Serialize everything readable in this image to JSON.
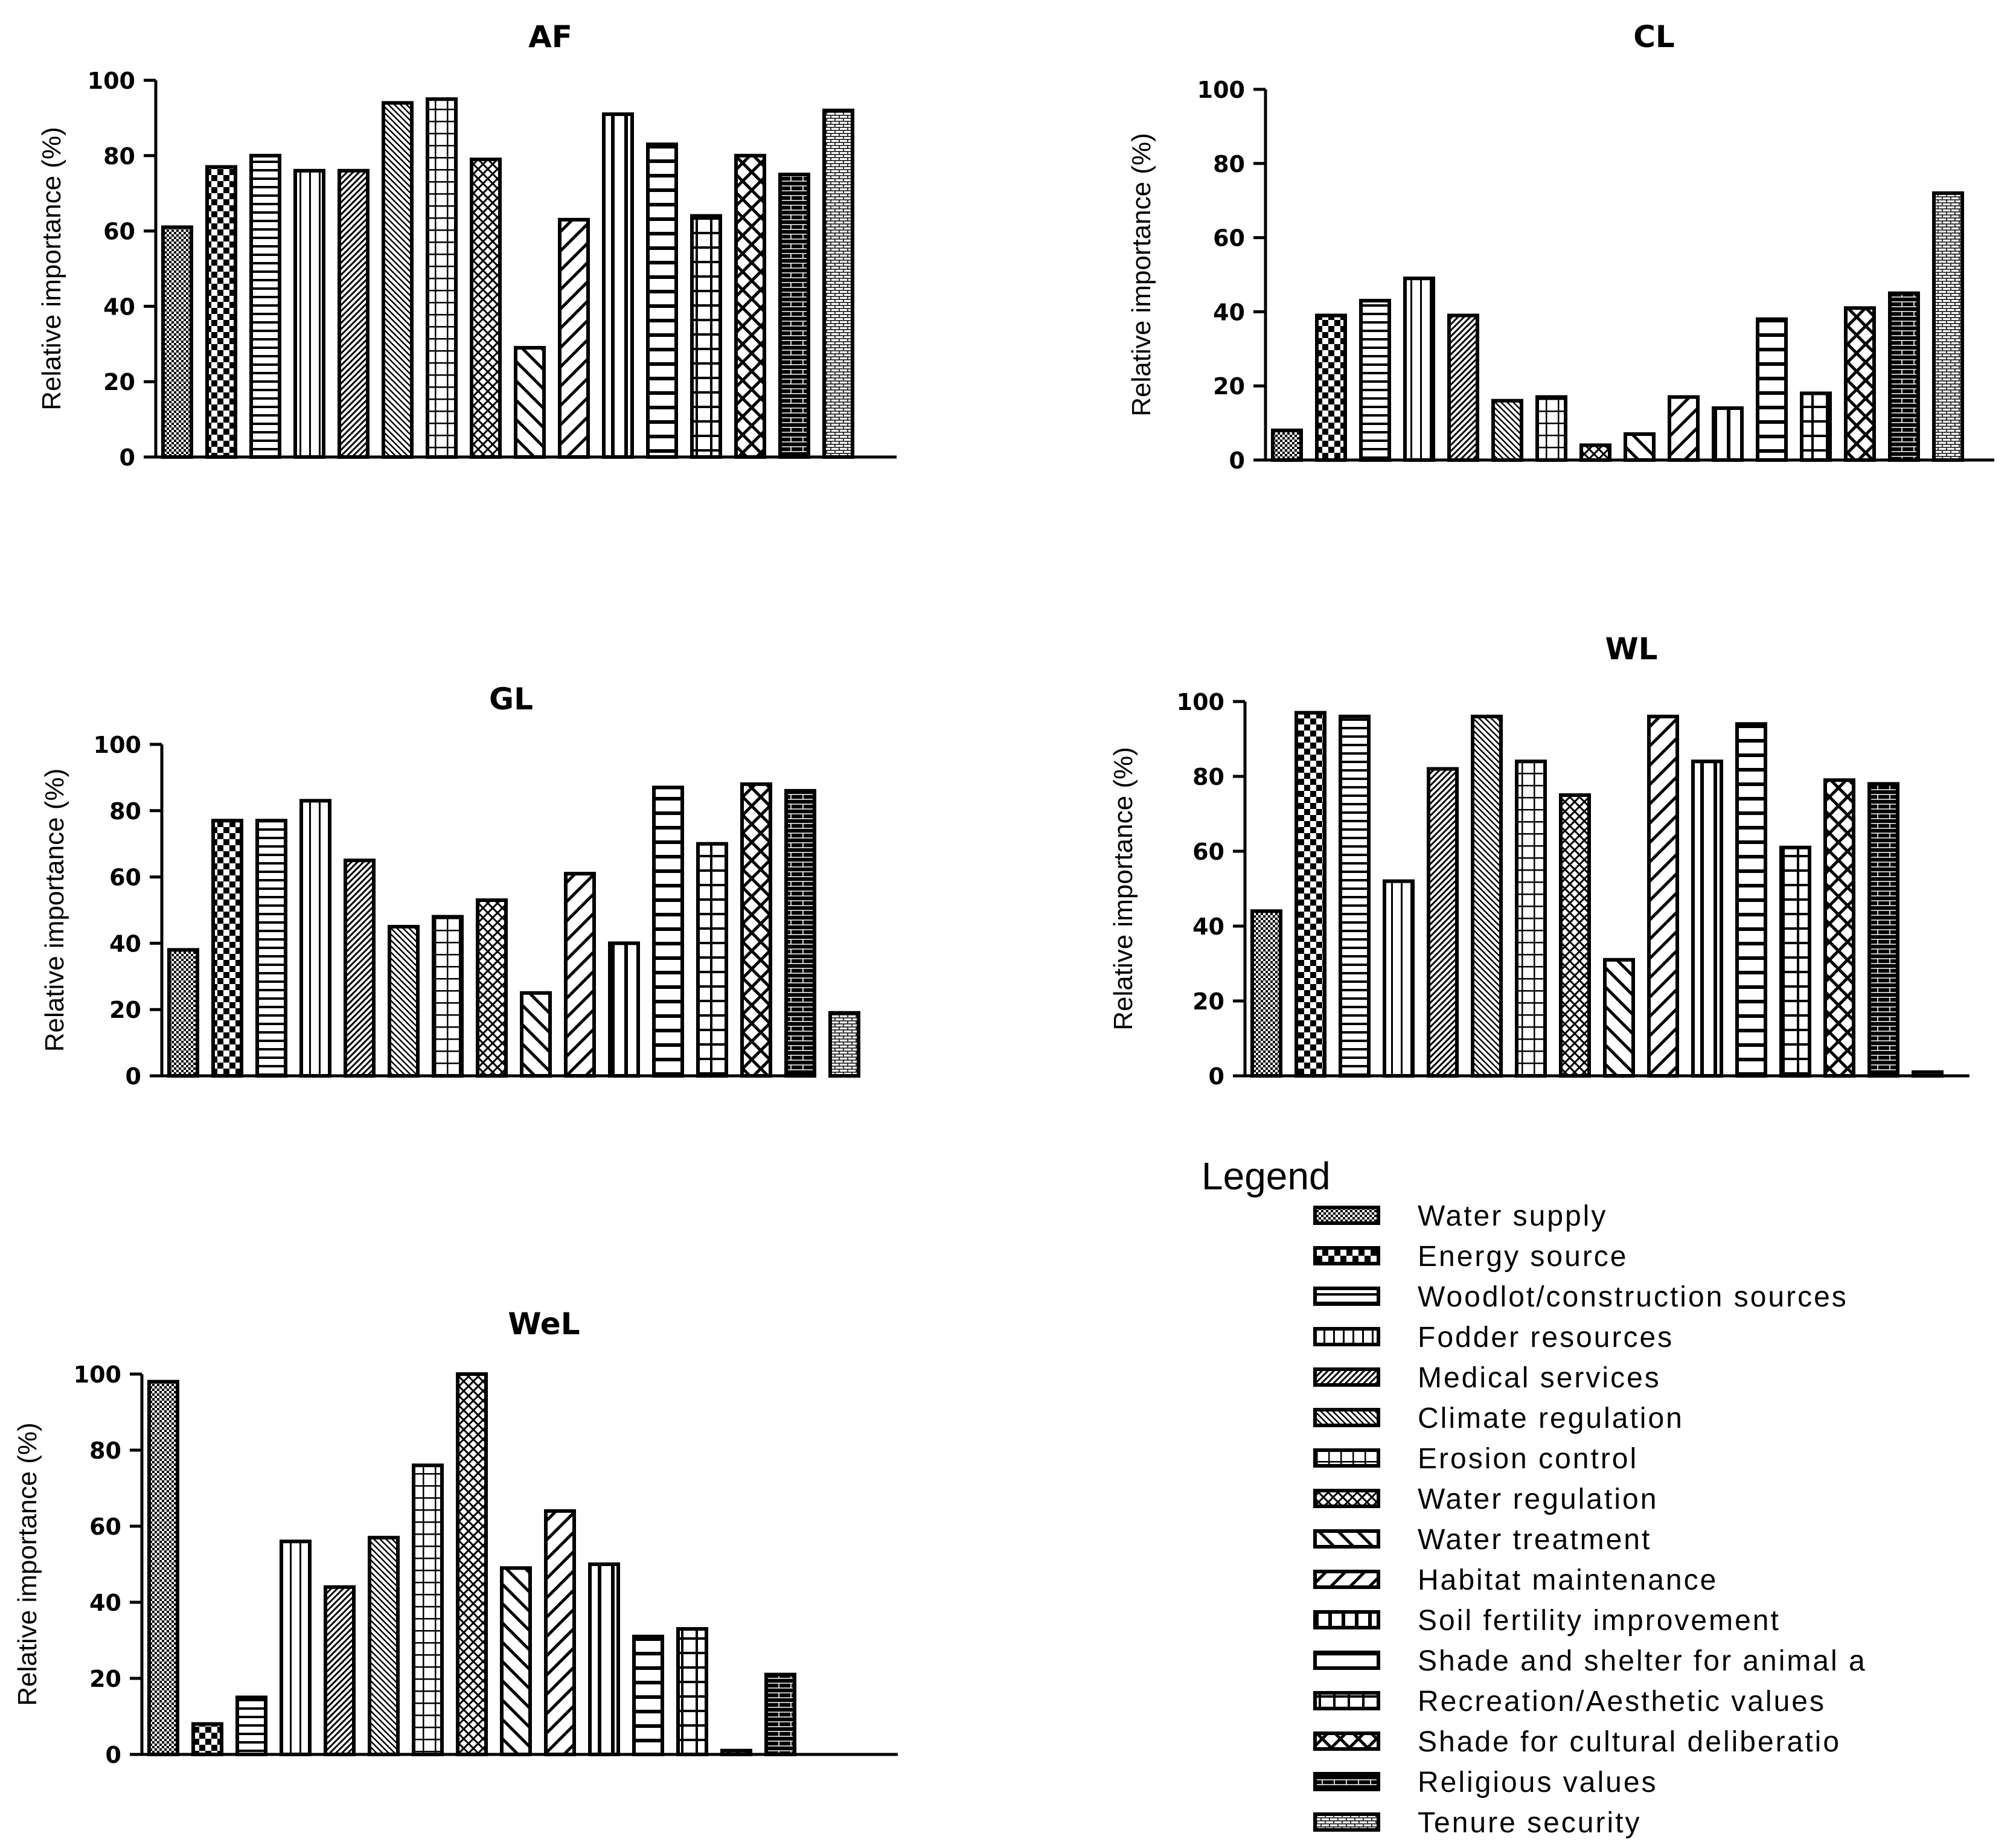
{
  "chart_data": [
    {
      "type": "bar",
      "title": "AF",
      "ylabel": "Relative importance (%)",
      "ylim": [
        0,
        100
      ],
      "yticks": [
        "0",
        "20",
        "40",
        "60",
        "80",
        "100"
      ],
      "values": [
        61,
        77,
        80,
        76,
        76,
        94,
        95,
        79,
        29,
        63,
        91,
        83,
        64,
        80,
        75,
        92
      ]
    },
    {
      "type": "bar",
      "title": "CL",
      "ylabel": "Relative importance (%)",
      "ylim": [
        0,
        100
      ],
      "yticks": [
        "0",
        "20",
        "40",
        "60",
        "80",
        "100"
      ],
      "values": [
        8,
        39,
        43,
        49,
        39,
        16,
        17,
        4,
        7,
        17,
        14,
        38,
        18,
        41,
        45,
        72
      ]
    },
    {
      "type": "bar",
      "title": "GL",
      "ylabel": "Relative importance (%)",
      "ylim": [
        0,
        100
      ],
      "yticks": [
        "0",
        "20",
        "40",
        "60",
        "80",
        "100"
      ],
      "values": [
        38,
        77,
        77,
        83,
        65,
        45,
        48,
        53,
        25,
        61,
        40,
        87,
        70,
        88,
        86,
        19
      ]
    },
    {
      "type": "bar",
      "title": "WL",
      "ylabel": "Relative importance (%)",
      "ylim": [
        0,
        100
      ],
      "yticks": [
        "0",
        "20",
        "40",
        "60",
        "80",
        "100"
      ],
      "values": [
        44,
        97,
        96,
        52,
        82,
        96,
        84,
        75,
        31,
        96,
        84,
        94,
        61,
        79,
        78,
        1
      ]
    },
    {
      "type": "bar",
      "title": "WeL",
      "ylabel": "Relative importance (%)",
      "ylim": [
        0,
        100
      ],
      "yticks": [
        "0",
        "20",
        "40",
        "60",
        "80",
        "100"
      ],
      "values": [
        98,
        8,
        15,
        56,
        44,
        57,
        76,
        100,
        49,
        64,
        50,
        31,
        33,
        1,
        21,
        null
      ]
    }
  ],
  "legend": {
    "title": "Legend",
    "items": [
      "Water supply",
      "Energy source",
      "Woodlot/construction sources",
      "Fodder resources",
      "Medical services",
      "Climate regulation",
      "Erosion control",
      "Water regulation",
      "Water treatment",
      "Habitat maintenance",
      "Soil fertility improvement",
      "Shade and shelter for animal a",
      "Recreation/Aesthetic values",
      "Shade for cultural deliberatio",
      "Religious values",
      "Tenure security"
    ]
  }
}
